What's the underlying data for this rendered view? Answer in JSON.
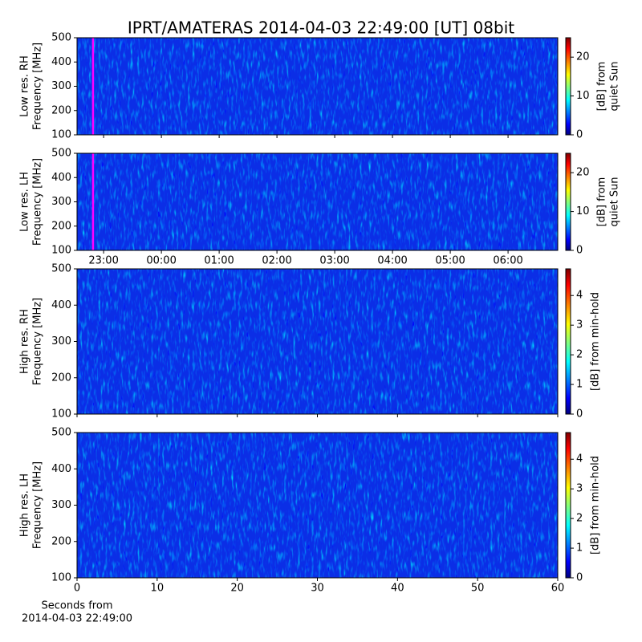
{
  "title": "IPRT/AMATERAS 2014-04-03 22:49:00 [UT]   08bit",
  "chart_data": [
    {
      "type": "heatmap",
      "ylabel": [
        "Low res. RH",
        "Frequency [MHz]"
      ],
      "xlim": [
        22.54,
        30.86
      ],
      "xticks": [
        {
          "value": 23,
          "label": "23:00"
        },
        {
          "value": 24,
          "label": "00:00"
        },
        {
          "value": 25,
          "label": "01:00"
        },
        {
          "value": 26,
          "label": "02:00"
        },
        {
          "value": 27,
          "label": "03:00"
        },
        {
          "value": 28,
          "label": "04:00"
        },
        {
          "value": 29,
          "label": "05:00"
        },
        {
          "value": 30,
          "label": "06:00"
        }
      ],
      "show_xtick_labels": false,
      "ylim": [
        100,
        500
      ],
      "yticks": [
        100,
        200,
        300,
        400,
        500
      ],
      "marker_x": 22.8167,
      "marker_color": "#ff00ff",
      "colorbar": {
        "label": [
          "[dB] from",
          "quiet Sun"
        ],
        "lim": [
          0,
          25
        ],
        "ticks": [
          0,
          10,
          20
        ],
        "colormap": "jet"
      }
    },
    {
      "type": "heatmap",
      "ylabel": [
        "Low res. LH",
        "Frequency [MHz]"
      ],
      "xlim": [
        22.54,
        30.86
      ],
      "xticks": [
        {
          "value": 23,
          "label": "23:00"
        },
        {
          "value": 24,
          "label": "00:00"
        },
        {
          "value": 25,
          "label": "01:00"
        },
        {
          "value": 26,
          "label": "02:00"
        },
        {
          "value": 27,
          "label": "03:00"
        },
        {
          "value": 28,
          "label": "04:00"
        },
        {
          "value": 29,
          "label": "05:00"
        },
        {
          "value": 30,
          "label": "06:00"
        }
      ],
      "show_xtick_labels": true,
      "ylim": [
        100,
        500
      ],
      "yticks": [
        100,
        200,
        300,
        400,
        500
      ],
      "marker_x": 22.8167,
      "marker_color": "#ff00ff",
      "colorbar": {
        "label": [
          "[dB] from",
          "quiet Sun"
        ],
        "lim": [
          0,
          25
        ],
        "ticks": [
          0,
          10,
          20
        ],
        "colormap": "jet"
      }
    },
    {
      "type": "heatmap",
      "ylabel": [
        "High res. RH",
        "Frequency [MHz]"
      ],
      "xlim": [
        0,
        60
      ],
      "xticks": [
        0,
        10,
        20,
        30,
        40,
        50,
        60
      ],
      "show_xtick_labels": false,
      "ylim": [
        100,
        500
      ],
      "yticks": [
        100,
        200,
        300,
        400,
        500
      ],
      "colorbar": {
        "label": [
          "[dB] from min-hold"
        ],
        "lim": [
          0,
          4.9
        ],
        "ticks": [
          0,
          1,
          2,
          3,
          4
        ],
        "colormap": "jet"
      }
    },
    {
      "type": "heatmap",
      "ylabel": [
        "High res. LH",
        "Frequency [MHz]"
      ],
      "xlim": [
        0,
        60
      ],
      "xticks": [
        0,
        10,
        20,
        30,
        40,
        50,
        60
      ],
      "show_xtick_labels": true,
      "xlabel": [
        "Seconds from",
        "2014-04-03 22:49:00"
      ],
      "ylim": [
        100,
        500
      ],
      "yticks": [
        100,
        200,
        300,
        400,
        500
      ],
      "colorbar": {
        "label": [
          "[dB] from min-hold"
        ],
        "lim": [
          0,
          4.9
        ],
        "ticks": [
          0,
          1,
          2,
          3,
          4
        ],
        "colormap": "jet"
      }
    }
  ]
}
